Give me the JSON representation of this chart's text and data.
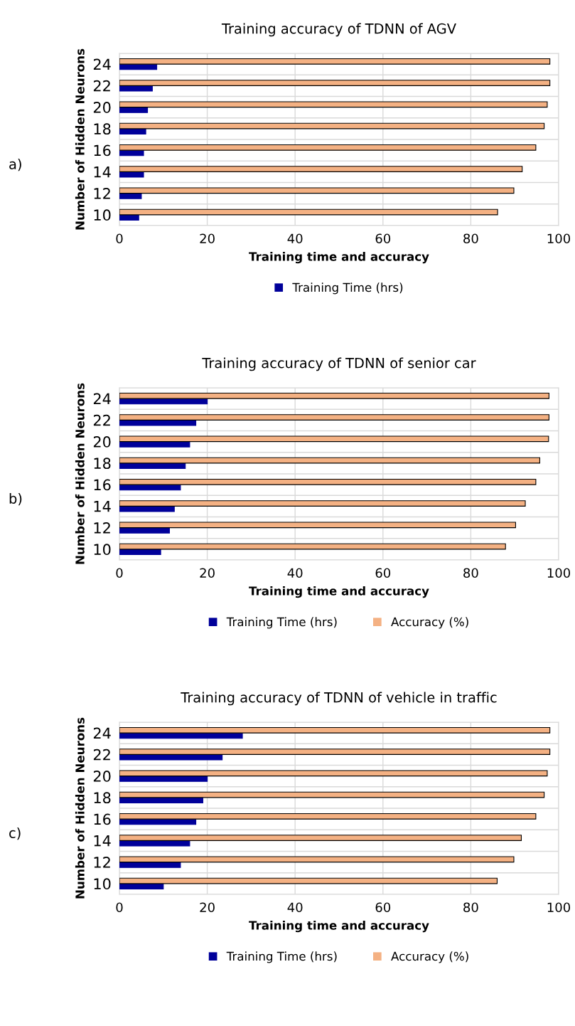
{
  "chart_data": [
    {
      "type": "bar",
      "orientation": "horizontal",
      "title": "Training accuracy of TDNN of AGV",
      "xlabel": "Training time and accuracy",
      "ylabel": "Number of Hidden Neurons",
      "annotations": [
        "a)"
      ],
      "categories": [
        "24",
        "22",
        "20",
        "18",
        "16",
        "14",
        "12",
        "10"
      ],
      "xlim": [
        0,
        100
      ],
      "xticks": [
        0,
        20,
        40,
        60,
        80,
        100
      ],
      "grid": true,
      "legend": "bottom",
      "series": [
        {
          "name": "Training Time (hrs)",
          "color": "#00009a",
          "values": [
            8.5,
            7.5,
            6.4,
            6.0,
            5.5,
            5.5,
            5.0,
            4.4
          ]
        },
        {
          "color": "#f4b183",
          "values": [
            98.0,
            98.0,
            97.4,
            96.7,
            94.8,
            91.7,
            89.8,
            86.1
          ]
        }
      ]
    },
    {
      "type": "bar",
      "orientation": "horizontal",
      "title": "Training accuracy of TDNN of senior car",
      "xlabel": "Training time and accuracy",
      "ylabel": "Number of Hidden Neurons",
      "annotations": [
        "b)"
      ],
      "categories": [
        "24",
        "22",
        "20",
        "18",
        "16",
        "14",
        "12",
        "10"
      ],
      "xlim": [
        0,
        100
      ],
      "xticks": [
        0,
        20,
        40,
        60,
        80,
        100
      ],
      "grid": true,
      "legend": "bottom",
      "series": [
        {
          "name": "Training Time (hrs)",
          "color": "#00009a",
          "values": [
            20.0,
            17.4,
            16.0,
            15.0,
            13.9,
            12.5,
            11.4,
            9.4
          ]
        },
        {
          "name": "Accuracy (%)",
          "color": "#f4b183",
          "values": [
            97.8,
            97.8,
            97.7,
            95.7,
            94.8,
            92.4,
            90.2,
            87.9
          ]
        }
      ]
    },
    {
      "type": "bar",
      "orientation": "horizontal",
      "title": "Training accuracy of TDNN of vehicle in traffic",
      "xlabel": "Training time and accuracy",
      "ylabel": "Number of Hidden Neurons",
      "annotations": [
        "c)"
      ],
      "categories": [
        "24",
        "22",
        "20",
        "18",
        "16",
        "14",
        "12",
        "10"
      ],
      "xlim": [
        0,
        100
      ],
      "xticks": [
        0,
        20,
        40,
        60,
        80,
        100
      ],
      "grid": true,
      "legend": "bottom",
      "series": [
        {
          "name": "Training Time (hrs)",
          "color": "#00009a",
          "values": [
            28.0,
            23.4,
            20.0,
            19.0,
            17.4,
            16.0,
            13.9,
            10.0
          ]
        },
        {
          "name": "Accuracy (%)",
          "color": "#f4b183",
          "values": [
            98.0,
            98.0,
            97.4,
            96.7,
            94.8,
            91.5,
            89.8,
            86.0
          ]
        }
      ]
    }
  ]
}
